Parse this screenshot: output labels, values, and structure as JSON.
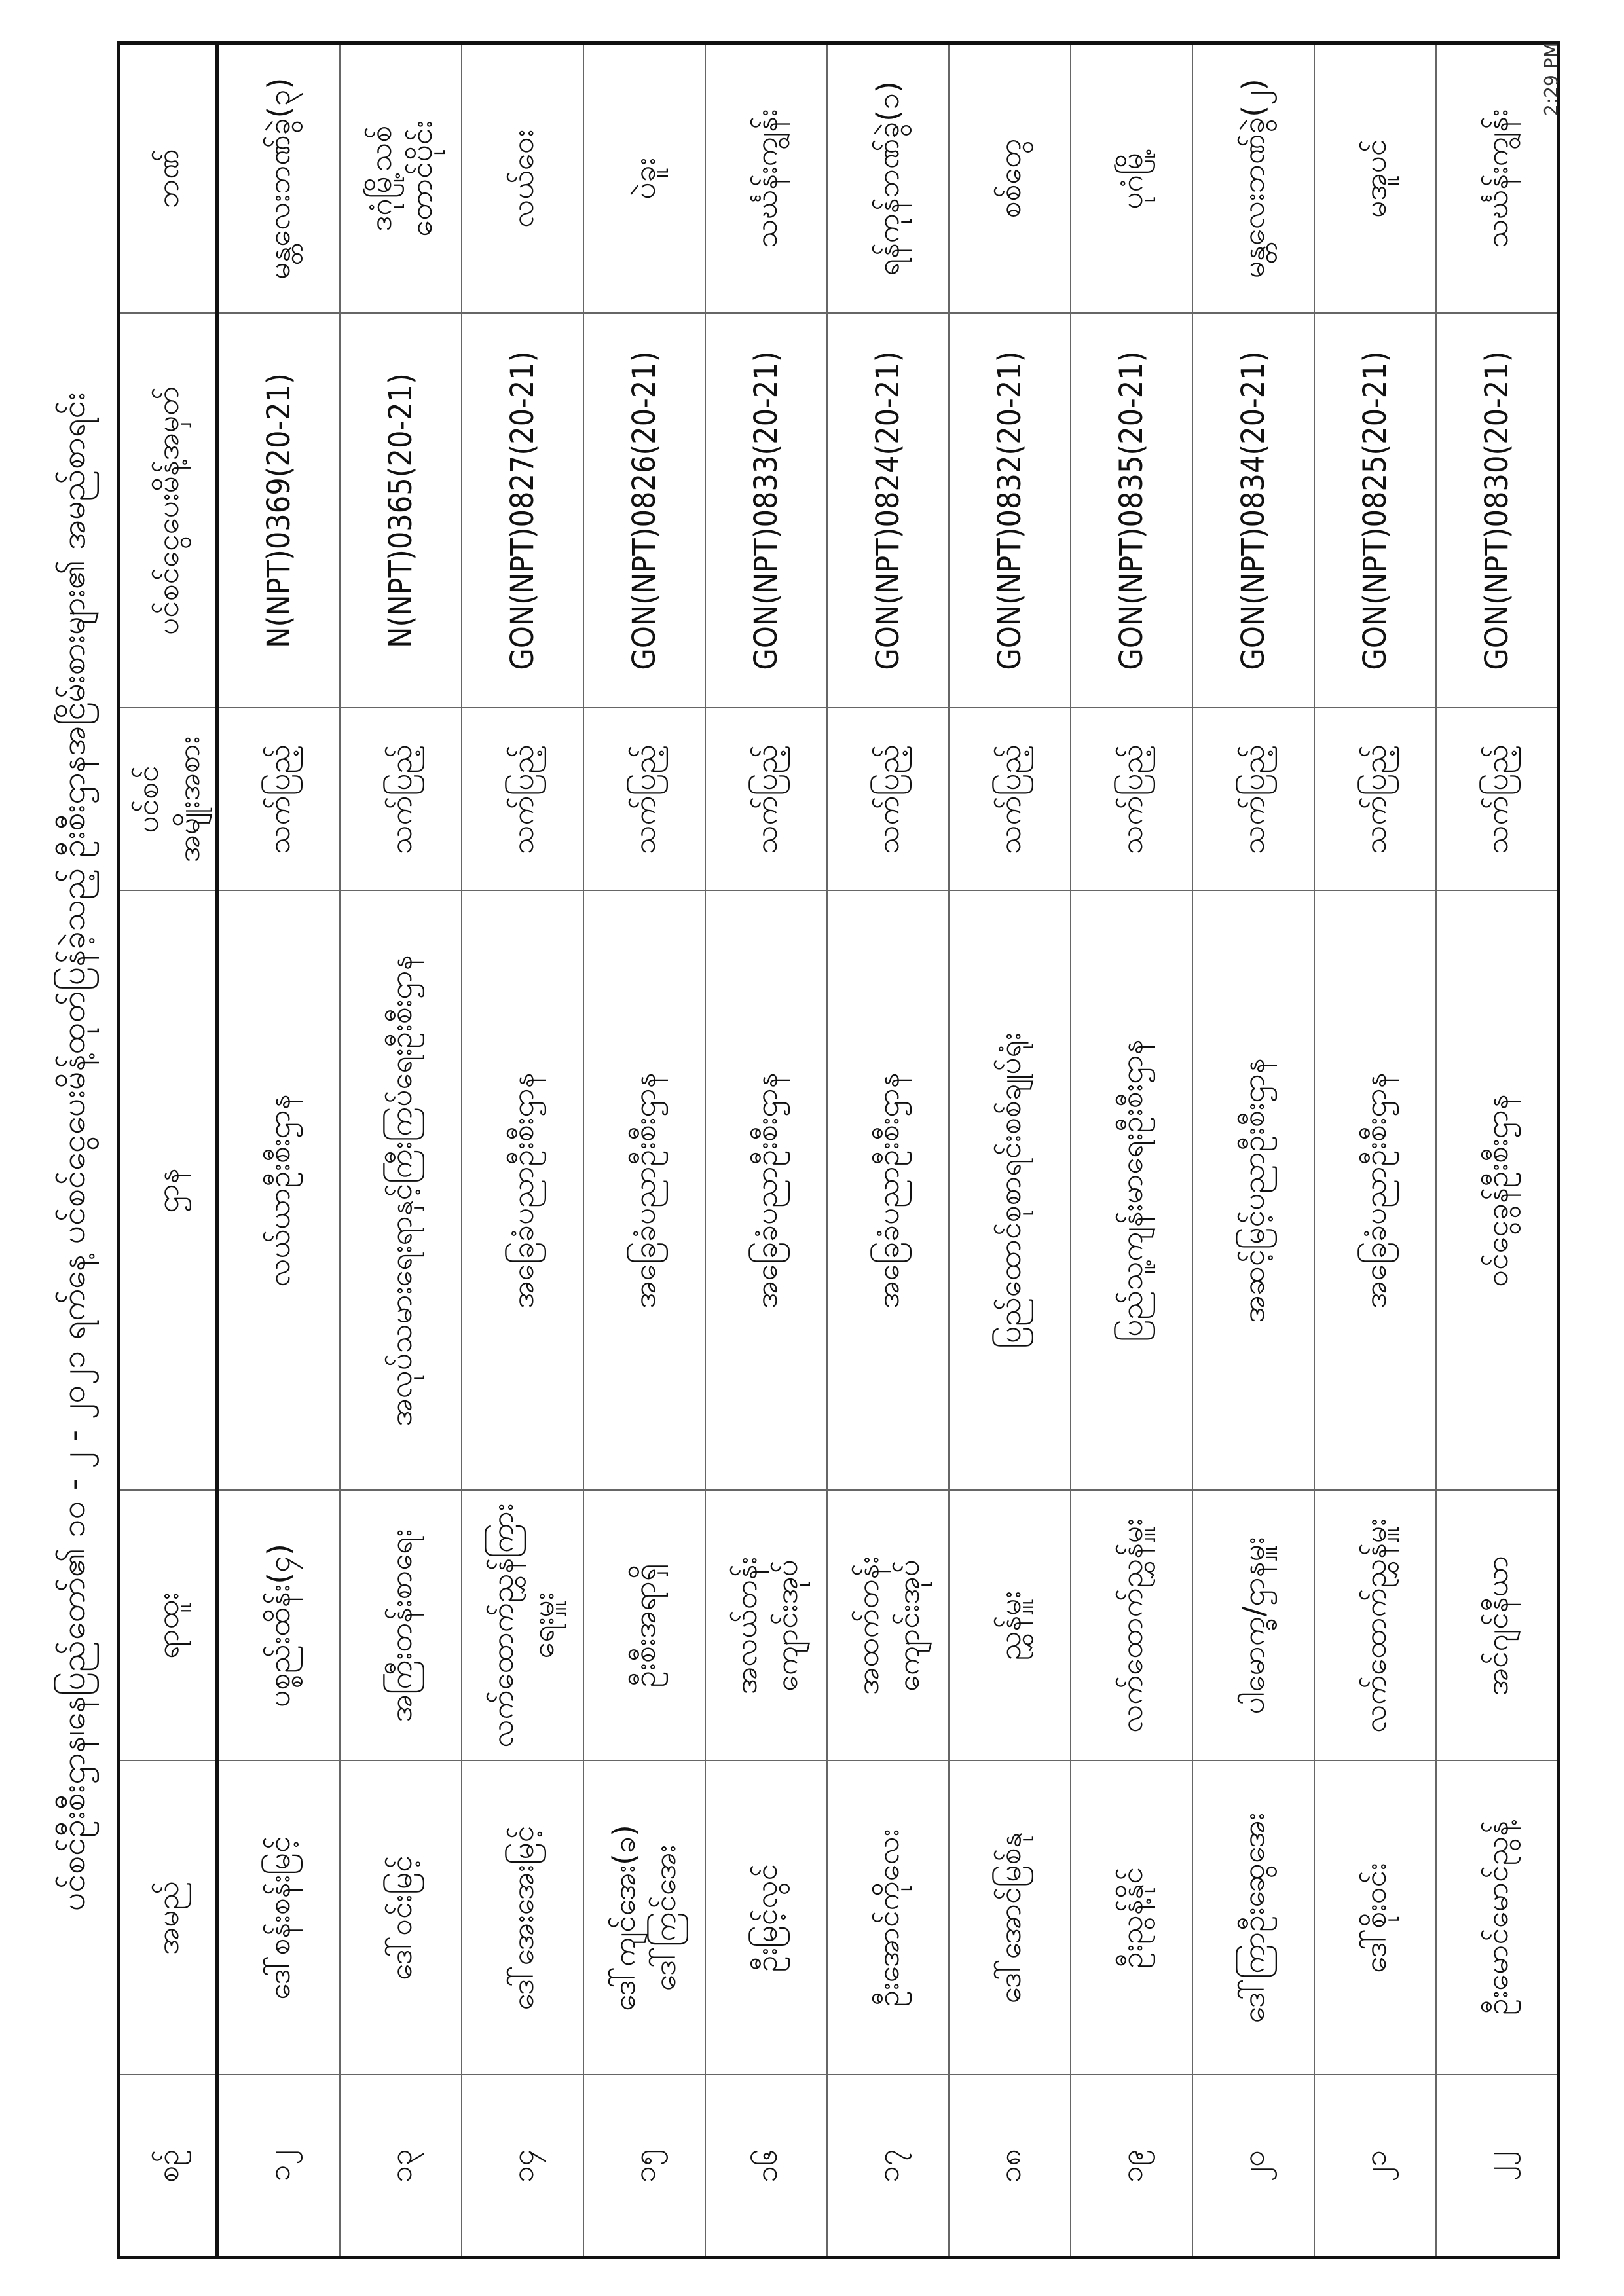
{
  "title": "ပင်စင်ဦးစီးဌာန၊နေပြည်တော်၏ ၁၀ - ၂ - ၂၀၂၁ ရက်နေ့ ပင်စင်ငွေပေးမိန့်ထုတ်ပြန်ခဲ့သည့် ဦးစီးဌာနအငြိမ်းစားများ၏ အမည်စာရင်း",
  "timestamp": "2:29 PM",
  "table": {
    "headers": [
      "စဉ်",
      "အမည်",
      "ရာထူး",
      "ဌာန",
      "ပင်စင်\nအမျိုးအစား",
      "ပင်စင်ငွေပေးမိန့်အမှတ်",
      "ဘဏ်"
    ],
    "rows": [
      [
        "၁၂",
        "ဒေါ်စန်းစန်းမြင့်",
        "ပစ္စည်းထိန်း(၄)",
        "လယ်ယာဦးစီးဌာန",
        "သက်ပြည့်",
        "N(NPT)0369(20-21)",
        "မန္တလေးဘဏ်ခွဲ(၃)"
      ],
      [
        "၁၃",
        "ဒေါ်ဝင်းမြင့်",
        "အကြီးတန်းစာရေး",
        "အလုပ်သမားရေးရာနှင့်ကြီးကြပ်ရေးဦးစီးဌာန",
        "သက်ပြည့်",
        "N(NPT)0365(20-21)",
        "ဒဂုံမြို့သစ်\nတောင်ပိုင်း"
      ],
      [
        "၁၄",
        "ဒေါ်အေးအေးမြင့်",
        "လက်ထောက်ညွှန်ကြားရေးမှူး",
        "အခြေခံပညာဦးစီးဌာန",
        "သက်ပြည့်",
        "GON(NPT)0827(20-21)",
        "လယ်ဝေး"
      ],
      [
        "၁၅",
        "ဒေါ်ကျင်အေး(ခ)\nဒေါ်ကြင်အေး",
        "ဦးစီးအရာရှိ",
        "အခြေခံပညာဦးစီးဌာန",
        "သက်ပြည့်",
        "GON(NPT)0826(20-21)",
        "ပဲခူး"
      ],
      [
        "၁၆",
        "ဦးမြင့်လွင်",
        "အလယ်တန်း\nကျောင်းအုပ်",
        "အခြေခံပညာဦးစီးဌာန",
        "သက်ပြည့်",
        "GON(NPT)0833(20-21)",
        "သင်္ဃန်းကျွန်း"
      ],
      [
        "၁၇",
        "ဦးအောင်ကိုလေး",
        "အထက်တန်း\nကျောင်းအုပ်",
        "အခြေခံပညာဦးစီးဌာန",
        "သက်ပြည့်",
        "GON(NPT)0824(20-21)",
        "ရန်ကုန်ဘဏ်ခွဲ(၁)"
      ],
      [
        "၁၈",
        "ဒေါ်အောင်မြစ်နု",
        "ညွှန်မှူး",
        "ပြည်ထောင်စုစာရင်းစစ်ချုပ်ရုံး",
        "သက်ပြည့်",
        "GON(NPT)0832(20-21)",
        "စစ်တွေ"
      ],
      [
        "၁၉",
        "ဦးညွန့်နိုင်",
        "လက်ထောက်ညွှန်မှူး",
        "ပြည်သူ့ကျန်းမာရေးဦးစီးဌာန",
        "သက်ပြည့်",
        "GON(NPT)0835(20-21)",
        "ပုဂံမြို့"
      ],
      [
        "၂၀",
        "ဒေါ်ကြာဦးဆွေအေး",
        "ပါမောက္ခ/ဌာနမှူး",
        "အဆင့်မြင့်ပညာဦးစီးဌာန",
        "သက်ပြည့်",
        "GON(NPT)0834(20-21)",
        "မန္တလေးဘဏ်ခွဲ(၂)"
      ],
      [
        "၂၁",
        "ဒေါ်စိုးဝင်း",
        "လက်ထောက်ညွှန်မှူး",
        "အခြေခံပညာဦးစီးဌာန",
        "သက်ပြည့်",
        "GON(NPT)0825(20-21)",
        "မအူပင်"
      ],
      [
        "၂၂",
        "ဦးမောင်မောင်ညွန့်",
        "အင်ဂျင်နီယာ",
        "ဝင်ငွေခွန်ဦးစီးဌာန",
        "သက်ပြည့်",
        "GON(NPT)0830(20-21)",
        "သင်္ဃန်းကျွန်း"
      ]
    ]
  }
}
